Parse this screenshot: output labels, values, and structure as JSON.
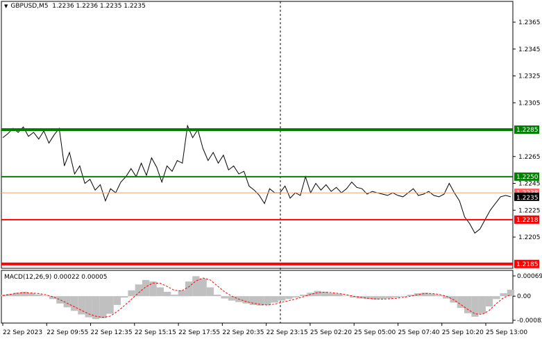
{
  "header": {
    "symbol": "GBPUSD,M5",
    "ohlc": "1.2236 1.2236 1.2235 1.2235"
  },
  "price_axis": {
    "ticks": [
      "1.2365",
      "1.2345",
      "1.2325",
      "1.2305",
      "1.2265",
      "1.2245",
      "1.2225",
      "1.2205"
    ]
  },
  "levels": [
    {
      "label": "1.2285",
      "color": "#008000",
      "value": 1.2285
    },
    {
      "label": "1.2250",
      "color": "#008000",
      "value": 1.225
    },
    {
      "label": "1.2218",
      "color": "#ff0000",
      "value": 1.2218
    },
    {
      "label": "1.2185",
      "color": "#ff0000",
      "value": 1.2185
    }
  ],
  "current_price": {
    "label": "1.2235",
    "hidden_label": "1.2238",
    "value": 1.2235
  },
  "macd": {
    "title": "MACD(12,26,9) 0.00022 0.00005",
    "ticks": [
      "0.00069",
      "0.00",
      "-0.00082"
    ]
  },
  "time_axis": {
    "labels": [
      "22 Sep 2023",
      "22 Sep 09:55",
      "22 Sep 12:35",
      "22 Sep 15:15",
      "22 Sep 17:55",
      "22 Sep 20:35",
      "22 Sep 23:15",
      "25 Sep 02:20",
      "25 Sep 05:00",
      "25 Sep 07:40",
      "25 Sep 10:20",
      "25 Sep 13:00"
    ]
  },
  "chart_data": {
    "type": "line",
    "series": [
      {
        "values": [
          1.2279,
          1.2282,
          1.2286,
          1.2283,
          1.2287,
          1.228,
          1.2283,
          1.2278,
          1.2284,
          1.2275,
          1.2281,
          1.2286,
          1.2258,
          1.2268,
          1.2252,
          1.2258,
          1.2245,
          1.2248,
          1.224,
          1.2244,
          1.2232,
          1.2241,
          1.2238,
          1.2246,
          1.225,
          1.2256,
          1.225,
          1.226,
          1.2251,
          1.2264,
          1.2257,
          1.2246,
          1.2258,
          1.2254,
          1.2262,
          1.226,
          1.2288,
          1.2279,
          1.2285,
          1.2271,
          1.2262,
          1.2268,
          1.226,
          1.2266,
          1.2255,
          1.2258,
          1.2252,
          1.2254,
          1.2243,
          1.224,
          1.2236,
          1.223,
          1.2241,
          1.2238,
          1.2238,
          1.2243,
          1.2234,
          1.2238,
          1.2236,
          1.225,
          1.2238,
          1.2245,
          1.224,
          1.2244,
          1.2239,
          1.2242,
          1.2238,
          1.2241,
          1.2246,
          1.2242,
          1.2241,
          1.2237,
          1.2239,
          1.2238,
          1.2237,
          1.2236,
          1.2238,
          1.2236,
          1.2235,
          1.2238,
          1.2241,
          1.2236,
          1.2237,
          1.2239,
          1.2236,
          1.2235,
          1.2237,
          1.2245,
          1.2238,
          1.2232,
          1.222,
          1.2215,
          1.2208,
          1.2211,
          1.2218,
          1.2225,
          1.223,
          1.2235,
          1.2236,
          1.2235
        ]
      }
    ],
    "ylim": [
      1.2175,
      1.238
    ],
    "macd_histogram": [
      5e-05,
      8e-05,
      0.00012,
      0.00015,
      0.0001,
      6e-05,
      2e-05,
      -0.0001,
      -0.00025,
      -0.00038,
      -0.0005,
      -0.00062,
      -0.00072,
      -0.00078,
      -0.00075,
      -0.0006,
      -0.0003,
      -5e-05,
      0.0002,
      0.0004,
      0.00055,
      0.0005,
      0.0003,
      0.00015,
      5e-05,
      0.0002,
      0.0005,
      0.00068,
      0.0006,
      0.0003,
      5e-05,
      -8e-05,
      -0.00015,
      -0.0002,
      -0.00025,
      -0.0003,
      -0.00032,
      -0.0003,
      -0.00022,
      -0.00015,
      -0.0001,
      -5e-05,
      5e-05,
      0.00012,
      0.00018,
      0.00015,
      0.0001,
      8e-05,
      2e-05,
      -5e-05,
      -8e-05,
      -0.0001,
      -0.00012,
      -0.0001,
      -8e-05,
      -5e-05,
      -2e-05,
      5e-05,
      0.0001,
      0.00012,
      8e-05,
      3e-05,
      -8e-05,
      -0.00022,
      -0.0004,
      -0.00058,
      -0.0007,
      -0.0006,
      -0.00035,
      -0.0001,
      0.0001,
      0.00022
    ],
    "macd_signal": [
      2e-05,
      6e-05,
      0.0001,
      0.00012,
      0.00011,
      9e-05,
      5e-05,
      -2e-05,
      -0.00012,
      -0.00024,
      -0.00036,
      -0.00048,
      -0.0006,
      -0.00068,
      -0.00072,
      -0.00068,
      -0.00052,
      -0.00032,
      -0.0001,
      0.00012,
      0.00032,
      0.00045,
      0.00044,
      0.00033,
      0.0002,
      0.00018,
      0.00032,
      0.00052,
      0.00062,
      0.00055,
      0.00035,
      0.00015,
      0.0,
      -0.0001,
      -0.00018,
      -0.00024,
      -0.00028,
      -0.0003,
      -0.00027,
      -0.00021,
      -0.00015,
      -9e-05,
      -2e-05,
      6e-05,
      0.00012,
      0.00014,
      0.00012,
      9e-05,
      5e-05,
      0.0,
      -4e-05,
      -7e-05,
      -9e-05,
      -0.0001,
      -9e-05,
      -7e-05,
      -4e-05,
      0.0,
      5e-05,
      9e-05,
      9e-05,
      6e-05,
      0.0,
      -0.00012,
      -0.00028,
      -0.00045,
      -0.0006,
      -0.00062,
      -0.00048,
      -0.00025,
      -5e-05,
      5e-05
    ],
    "macd_ylim": [
      -0.00095,
      0.00085
    ]
  }
}
